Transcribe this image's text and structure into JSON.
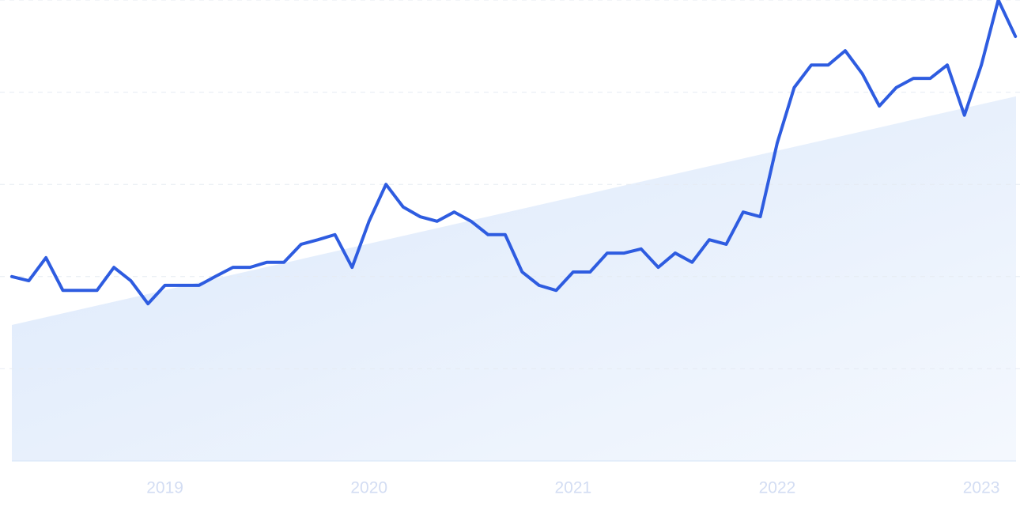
{
  "chart_data": {
    "type": "line",
    "x": [
      2018.25,
      2018.333,
      2018.417,
      2018.5,
      2018.583,
      2018.667,
      2018.75,
      2018.833,
      2018.917,
      2019,
      2019.083,
      2019.167,
      2019.25,
      2019.333,
      2019.417,
      2019.5,
      2019.583,
      2019.667,
      2019.75,
      2019.833,
      2019.917,
      2020,
      2020.083,
      2020.167,
      2020.25,
      2020.333,
      2020.417,
      2020.5,
      2020.583,
      2020.667,
      2020.75,
      2020.833,
      2020.917,
      2021,
      2021.083,
      2021.167,
      2021.25,
      2021.333,
      2021.417,
      2021.5,
      2021.583,
      2021.667,
      2021.75,
      2021.833,
      2021.917,
      2022,
      2022.083,
      2022.167,
      2022.25,
      2022.333,
      2022.417,
      2022.5,
      2022.583,
      2022.667,
      2022.75,
      2022.833,
      2022.917,
      2023,
      2023.083,
      2023.167
    ],
    "values": [
      40,
      39.1,
      44.1,
      37,
      37,
      37,
      42,
      39.1,
      34.1,
      38.1,
      38.1,
      38.1,
      40.1,
      42,
      42,
      43.1,
      43.1,
      47,
      48,
      49.1,
      42,
      52,
      60,
      55.1,
      53,
      52,
      54,
      52,
      49.1,
      49.1,
      41,
      38.1,
      37,
      41,
      41,
      45.1,
      45.1,
      46,
      42,
      45.1,
      43.1,
      48,
      47,
      54,
      53,
      69,
      81,
      85.9,
      85.9,
      89,
      84,
      77,
      81,
      83,
      83,
      85.9,
      75,
      85.9,
      100,
      92.1
    ],
    "color": "#2e5ce0",
    "trend": {
      "values": [
        29.5,
        79.1
      ],
      "color": "#dbe8fb"
    },
    "xlim": [
      2018.25,
      2023.17
    ],
    "xticks": [
      2019,
      2020,
      2021,
      2022,
      2023
    ],
    "ylim": [
      0,
      100
    ],
    "yticks": [
      0,
      20,
      40,
      60,
      80,
      100
    ],
    "grid": true
  }
}
